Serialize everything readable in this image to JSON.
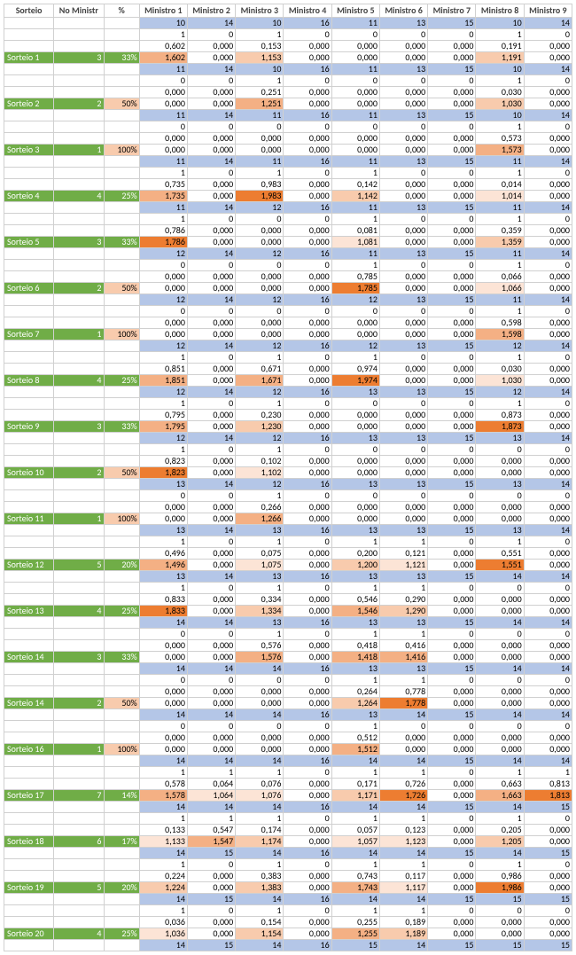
{
  "headers": [
    "Sorteio",
    "No Ministr",
    "%",
    "Ministro 1",
    "Ministro 2",
    "Ministro 3",
    "Ministro 4",
    "Ministro 5",
    "Ministro 6",
    "Ministro 7",
    "Ministro 8",
    "Ministro 9"
  ],
  "colors": {
    "green": "#70ad47",
    "pink": "#f8cbad",
    "blue": "#b4c6e7",
    "hl": [
      "#fce4d6",
      "#f8cbad",
      "#f4b084",
      "#ed7d31"
    ]
  },
  "groups": [
    {
      "label": "",
      "no": "",
      "pct": "",
      "pctClass": "",
      "r1": [
        "10",
        "14",
        "10",
        "16",
        "11",
        "13",
        "15",
        "10",
        "14"
      ],
      "r2": [
        "1",
        "0",
        "1",
        "0",
        "0",
        "0",
        "0",
        "1",
        "0"
      ],
      "r3": [
        "0,602",
        "0,000",
        "0,153",
        "0,000",
        "0,000",
        "0,000",
        "0,000",
        "0,191",
        "0,000"
      ],
      "r4": [
        "1,602",
        "0,000",
        "1,153",
        "0,000",
        "0,000",
        "0,000",
        "0,000",
        "1,191",
        "0,000"
      ],
      "hlIdx": {
        "0": 3,
        "2": 2,
        "7": 2
      },
      "r1IsBlue": true,
      "showLabelOnR4": true,
      "labelOverride": "Sorteio 1",
      "noOverride": "3",
      "pctOverride": "33%",
      "pctClassOverride": "pct-green"
    },
    {
      "label": "Sorteio 2",
      "no": "2",
      "pct": "50%",
      "pctClass": "pct-pink",
      "r1": [
        "11",
        "14",
        "10",
        "16",
        "11",
        "13",
        "15",
        "10",
        "14"
      ],
      "r2": [
        "0",
        "0",
        "1",
        "0",
        "0",
        "0",
        "0",
        "1",
        "0"
      ],
      "r3": [
        "0,000",
        "0,000",
        "0,251",
        "0,000",
        "0,000",
        "0,000",
        "0,000",
        "0,030",
        "0,000"
      ],
      "r4": [
        "0,000",
        "0,000",
        "1,251",
        "0,000",
        "0,000",
        "0,000",
        "0,000",
        "1,030",
        "0,000"
      ],
      "hlIdx": {
        "2": 3,
        "7": 2
      }
    },
    {
      "label": "Sorteio 3",
      "no": "1",
      "pct": "100%",
      "pctClass": "pct-pink",
      "r1": [
        "11",
        "14",
        "11",
        "16",
        "11",
        "13",
        "15",
        "10",
        "14"
      ],
      "r2": [
        "0",
        "0",
        "0",
        "0",
        "0",
        "0",
        "0",
        "1",
        "0"
      ],
      "r3": [
        "0,000",
        "0,000",
        "0,000",
        "0,000",
        "0,000",
        "0,000",
        "0,000",
        "0,573",
        "0,000"
      ],
      "r4": [
        "0,000",
        "0,000",
        "0,000",
        "0,000",
        "0,000",
        "0,000",
        "0,000",
        "1,573",
        "0,000"
      ],
      "hlIdx": {
        "7": 3
      }
    },
    {
      "label": "Sorteio 4",
      "no": "4",
      "pct": "25%",
      "pctClass": "pct-green",
      "r1": [
        "11",
        "14",
        "11",
        "16",
        "11",
        "13",
        "15",
        "11",
        "14"
      ],
      "r2": [
        "1",
        "0",
        "1",
        "0",
        "1",
        "0",
        "0",
        "1",
        "0"
      ],
      "r3": [
        "0,735",
        "0,000",
        "0,983",
        "0,000",
        "0,142",
        "0,000",
        "0,000",
        "0,014",
        "0,000"
      ],
      "r4": [
        "1,735",
        "0,000",
        "1,983",
        "0,000",
        "1,142",
        "0,000",
        "0,000",
        "1,014",
        "0,000"
      ],
      "hlIdx": {
        "0": 3,
        "2": 4,
        "4": 2,
        "7": 1
      }
    },
    {
      "label": "Sorteio 5",
      "no": "3",
      "pct": "33%",
      "pctClass": "pct-green",
      "r1": [
        "11",
        "14",
        "12",
        "16",
        "11",
        "13",
        "15",
        "11",
        "14"
      ],
      "r2": [
        "1",
        "0",
        "0",
        "0",
        "1",
        "0",
        "0",
        "1",
        "0"
      ],
      "r3": [
        "0,786",
        "0,000",
        "0,000",
        "0,000",
        "0,081",
        "0,000",
        "0,000",
        "0,359",
        "0,000"
      ],
      "r4": [
        "1,786",
        "0,000",
        "0,000",
        "0,000",
        "1,081",
        "0,000",
        "0,000",
        "1,359",
        "0,000"
      ],
      "hlIdx": {
        "0": 4,
        "4": 1,
        "7": 2
      }
    },
    {
      "label": "Sorteio 6",
      "no": "2",
      "pct": "50%",
      "pctClass": "pct-pink",
      "r1": [
        "12",
        "14",
        "12",
        "16",
        "11",
        "13",
        "15",
        "11",
        "14"
      ],
      "r2": [
        "0",
        "0",
        "0",
        "0",
        "1",
        "0",
        "0",
        "1",
        "0"
      ],
      "r3": [
        "0,000",
        "0,000",
        "0,000",
        "0,000",
        "0,785",
        "0,000",
        "0,000",
        "0,066",
        "0,000"
      ],
      "r4": [
        "0,000",
        "0,000",
        "0,000",
        "0,000",
        "1,785",
        "0,000",
        "0,000",
        "1,066",
        "0,000"
      ],
      "hlIdx": {
        "4": 4,
        "7": 1
      }
    },
    {
      "label": "Sorteio 7",
      "no": "1",
      "pct": "100%",
      "pctClass": "pct-pink",
      "r1": [
        "12",
        "14",
        "12",
        "16",
        "12",
        "13",
        "15",
        "11",
        "14"
      ],
      "r2": [
        "0",
        "0",
        "0",
        "0",
        "0",
        "0",
        "0",
        "1",
        "0"
      ],
      "r3": [
        "0,000",
        "0,000",
        "0,000",
        "0,000",
        "0,000",
        "0,000",
        "0,000",
        "0,598",
        "0,000"
      ],
      "r4": [
        "0,000",
        "0,000",
        "0,000",
        "0,000",
        "0,000",
        "0,000",
        "0,000",
        "1,598",
        "0,000"
      ],
      "hlIdx": {
        "7": 3
      }
    },
    {
      "label": "Sorteio 8",
      "no": "4",
      "pct": "25%",
      "pctClass": "pct-green",
      "r1": [
        "12",
        "14",
        "12",
        "16",
        "12",
        "13",
        "15",
        "12",
        "14"
      ],
      "r2": [
        "1",
        "0",
        "1",
        "0",
        "1",
        "0",
        "0",
        "1",
        "0"
      ],
      "r3": [
        "0,851",
        "0,000",
        "0,671",
        "0,000",
        "0,974",
        "0,000",
        "0,000",
        "0,030",
        "0,000"
      ],
      "r4": [
        "1,851",
        "0,000",
        "1,671",
        "0,000",
        "1,974",
        "0,000",
        "0,000",
        "1,030",
        "0,000"
      ],
      "hlIdx": {
        "0": 3,
        "2": 3,
        "4": 4,
        "7": 1
      }
    },
    {
      "label": "Sorteio 9",
      "no": "3",
      "pct": "33%",
      "pctClass": "pct-green",
      "r1": [
        "12",
        "14",
        "12",
        "16",
        "13",
        "13",
        "15",
        "12",
        "14"
      ],
      "r2": [
        "1",
        "0",
        "1",
        "0",
        "0",
        "0",
        "0",
        "1",
        "0"
      ],
      "r3": [
        "0,795",
        "0,000",
        "0,230",
        "0,000",
        "0,000",
        "0,000",
        "0,000",
        "0,873",
        "0,000"
      ],
      "r4": [
        "1,795",
        "0,000",
        "1,230",
        "0,000",
        "0,000",
        "0,000",
        "0,000",
        "1,873",
        "0,000"
      ],
      "hlIdx": {
        "0": 3,
        "2": 2,
        "7": 4
      }
    },
    {
      "label": "Sorteio 10",
      "no": "2",
      "pct": "50%",
      "pctClass": "pct-pink",
      "r1": [
        "12",
        "14",
        "12",
        "16",
        "13",
        "13",
        "15",
        "13",
        "14"
      ],
      "r2": [
        "1",
        "0",
        "1",
        "0",
        "0",
        "0",
        "0",
        "0",
        "0"
      ],
      "r3": [
        "0,823",
        "0,000",
        "0,102",
        "0,000",
        "0,000",
        "0,000",
        "0,000",
        "0,000",
        "0,000"
      ],
      "r4": [
        "1,823",
        "0,000",
        "1,102",
        "0,000",
        "0,000",
        "0,000",
        "0,000",
        "0,000",
        "0,000"
      ],
      "hlIdx": {
        "0": 4,
        "2": 1
      }
    },
    {
      "label": "Sorteio 11",
      "no": "1",
      "pct": "100%",
      "pctClass": "pct-pink",
      "r1": [
        "13",
        "14",
        "12",
        "16",
        "13",
        "13",
        "15",
        "13",
        "14"
      ],
      "r2": [
        "0",
        "0",
        "1",
        "0",
        "0",
        "0",
        "0",
        "0",
        "0"
      ],
      "r3": [
        "0,000",
        "0,000",
        "0,266",
        "0,000",
        "0,000",
        "0,000",
        "0,000",
        "0,000",
        "0,000"
      ],
      "r4": [
        "0,000",
        "0,000",
        "1,266",
        "0,000",
        "0,000",
        "0,000",
        "0,000",
        "0,000",
        "0,000"
      ],
      "hlIdx": {
        "2": 3
      }
    },
    {
      "label": "Sorteio 12",
      "no": "5",
      "pct": "20%",
      "pctClass": "pct-green",
      "r1": [
        "13",
        "14",
        "13",
        "16",
        "13",
        "13",
        "15",
        "13",
        "14"
      ],
      "r2": [
        "1",
        "0",
        "1",
        "0",
        "1",
        "1",
        "0",
        "1",
        "0"
      ],
      "r3": [
        "0,496",
        "0,000",
        "0,075",
        "0,000",
        "0,200",
        "0,121",
        "0,000",
        "0,551",
        "0,000"
      ],
      "r4": [
        "1,496",
        "0,000",
        "1,075",
        "0,000",
        "1,200",
        "1,121",
        "0,000",
        "1,551",
        "0,000"
      ],
      "hlIdx": {
        "0": 3,
        "2": 1,
        "4": 2,
        "5": 1,
        "7": 4
      }
    },
    {
      "label": "Sorteio 13",
      "no": "4",
      "pct": "25%",
      "pctClass": "pct-green",
      "r1": [
        "13",
        "14",
        "13",
        "16",
        "13",
        "13",
        "15",
        "14",
        "14"
      ],
      "r2": [
        "1",
        "0",
        "1",
        "0",
        "1",
        "1",
        "0",
        "0",
        "0"
      ],
      "r3": [
        "0,833",
        "0,000",
        "0,334",
        "0,000",
        "0,546",
        "0,290",
        "0,000",
        "0,000",
        "0,000"
      ],
      "r4": [
        "1,833",
        "0,000",
        "1,334",
        "0,000",
        "1,546",
        "1,290",
        "0,000",
        "0,000",
        "0,000"
      ],
      "hlIdx": {
        "0": 4,
        "2": 2,
        "4": 3,
        "5": 2
      }
    },
    {
      "label": "Sorteio 14",
      "no": "3",
      "pct": "33%",
      "pctClass": "pct-green",
      "r1": [
        "14",
        "14",
        "13",
        "16",
        "13",
        "13",
        "15",
        "14",
        "14"
      ],
      "r2": [
        "0",
        "0",
        "1",
        "0",
        "1",
        "1",
        "0",
        "0",
        "0"
      ],
      "r3": [
        "0,000",
        "0,000",
        "0,576",
        "0,000",
        "0,418",
        "0,416",
        "0,000",
        "0,000",
        "0,000"
      ],
      "r4": [
        "0,000",
        "0,000",
        "1,576",
        "0,000",
        "1,418",
        "1,416",
        "0,000",
        "0,000",
        "0,000"
      ],
      "hlIdx": {
        "2": 3,
        "4": 3,
        "5": 3
      }
    },
    {
      "label": "Sorteio 14",
      "no": "2",
      "pct": "50%",
      "pctClass": "pct-pink",
      "r1": [
        "14",
        "14",
        "14",
        "16",
        "13",
        "13",
        "15",
        "14",
        "14"
      ],
      "r2": [
        "0",
        "0",
        "0",
        "0",
        "1",
        "1",
        "0",
        "0",
        "0"
      ],
      "r3": [
        "0,000",
        "0,000",
        "0,000",
        "0,000",
        "0,264",
        "0,778",
        "0,000",
        "0,000",
        "0,000"
      ],
      "r4": [
        "0,000",
        "0,000",
        "0,000",
        "0,000",
        "1,264",
        "1,778",
        "0,000",
        "0,000",
        "0,000"
      ],
      "hlIdx": {
        "4": 2,
        "5": 4
      }
    },
    {
      "label": "Sorteio 16",
      "no": "1",
      "pct": "100%",
      "pctClass": "pct-pink",
      "r1": [
        "14",
        "14",
        "14",
        "16",
        "13",
        "14",
        "15",
        "14",
        "14"
      ],
      "r2": [
        "0",
        "0",
        "0",
        "0",
        "1",
        "0",
        "0",
        "0",
        "0"
      ],
      "r3": [
        "0,000",
        "0,000",
        "0,000",
        "0,000",
        "0,512",
        "0,000",
        "0,000",
        "0,000",
        "0,000"
      ],
      "r4": [
        "0,000",
        "0,000",
        "0,000",
        "0,000",
        "1,512",
        "0,000",
        "0,000",
        "0,000",
        "0,000"
      ],
      "hlIdx": {
        "4": 3
      }
    },
    {
      "label": "Sorteio 17",
      "no": "7",
      "pct": "14%",
      "pctClass": "pct-green",
      "r1": [
        "14",
        "14",
        "14",
        "16",
        "14",
        "14",
        "15",
        "14",
        "14"
      ],
      "r2": [
        "1",
        "1",
        "1",
        "0",
        "1",
        "1",
        "0",
        "1",
        "1"
      ],
      "r3": [
        "0,578",
        "0,064",
        "0,076",
        "0,000",
        "0,171",
        "0,726",
        "0,000",
        "0,663",
        "0,813"
      ],
      "r4": [
        "1,578",
        "1,064",
        "1,076",
        "0,000",
        "1,171",
        "1,726",
        "0,000",
        "1,663",
        "1,813"
      ],
      "hlIdx": {
        "0": 3,
        "1": 1,
        "2": 1,
        "4": 2,
        "5": 4,
        "7": 3,
        "8": 4
      }
    },
    {
      "label": "Sorteio 18",
      "no": "6",
      "pct": "17%",
      "pctClass": "pct-green",
      "r1": [
        "14",
        "14",
        "14",
        "16",
        "14",
        "14",
        "15",
        "14",
        "15"
      ],
      "r2": [
        "1",
        "1",
        "1",
        "0",
        "1",
        "1",
        "0",
        "1",
        "0"
      ],
      "r3": [
        "0,133",
        "0,547",
        "0,174",
        "0,000",
        "0,057",
        "0,123",
        "0,000",
        "0,205",
        "0,000"
      ],
      "r4": [
        "1,133",
        "1,547",
        "1,174",
        "0,000",
        "1,057",
        "1,123",
        "0,000",
        "1,205",
        "0,000"
      ],
      "hlIdx": {
        "0": 1,
        "1": 3,
        "2": 2,
        "4": 1,
        "5": 1,
        "7": 2
      }
    },
    {
      "label": "Sorteio 19",
      "no": "5",
      "pct": "20%",
      "pctClass": "pct-green",
      "r1": [
        "14",
        "15",
        "14",
        "16",
        "14",
        "14",
        "15",
        "14",
        "15"
      ],
      "r2": [
        "1",
        "0",
        "1",
        "0",
        "1",
        "1",
        "0",
        "1",
        "0"
      ],
      "r3": [
        "0,224",
        "0,000",
        "0,383",
        "0,000",
        "0,743",
        "0,117",
        "0,000",
        "0,986",
        "0,000"
      ],
      "r4": [
        "1,224",
        "0,000",
        "1,383",
        "0,000",
        "1,743",
        "1,117",
        "0,000",
        "1,986",
        "0,000"
      ],
      "hlIdx": {
        "0": 2,
        "2": 2,
        "4": 3,
        "5": 1,
        "7": 4
      }
    },
    {
      "label": "Sorteio 20",
      "no": "4",
      "pct": "25%",
      "pctClass": "pct-green",
      "r1": [
        "14",
        "15",
        "14",
        "16",
        "14",
        "14",
        "15",
        "15",
        "15"
      ],
      "r2": [
        "1",
        "0",
        "1",
        "0",
        "1",
        "1",
        "0",
        "0",
        "0"
      ],
      "r3": [
        "0,036",
        "0,000",
        "0,154",
        "0,000",
        "0,255",
        "0,189",
        "0,000",
        "0,000",
        "0,000"
      ],
      "r4": [
        "1,036",
        "0,000",
        "1,154",
        "0,000",
        "1,255",
        "1,189",
        "0,000",
        "0,000",
        "0,000"
      ],
      "hlIdx": {
        "0": 1,
        "2": 2,
        "4": 3,
        "5": 2
      },
      "foot": [
        "14",
        "15",
        "14",
        "16",
        "15",
        "14",
        "15",
        "15",
        "15"
      ]
    }
  ]
}
